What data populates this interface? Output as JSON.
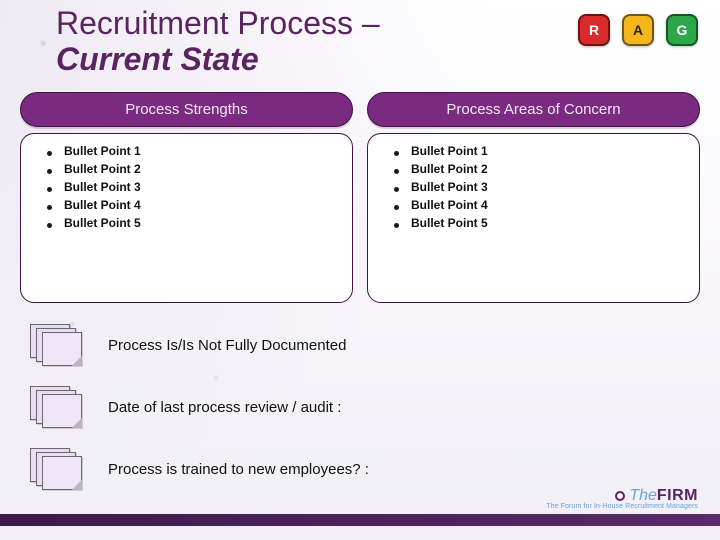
{
  "title": {
    "line1": "Recruitment Process –",
    "line2": "Current State"
  },
  "rag": {
    "r": "R",
    "a": "A",
    "g": "G"
  },
  "columns": {
    "left": {
      "header": "Process Strengths",
      "items": [
        "Bullet Point 1",
        "Bullet Point 2",
        "Bullet Point 3",
        "Bullet Point 4",
        "Bullet Point 5"
      ]
    },
    "right": {
      "header": "Process Areas of Concern",
      "items": [
        "Bullet Point 1",
        "Bullet Point 2",
        "Bullet Point 3",
        "Bullet Point 4",
        "Bullet Point 5"
      ]
    }
  },
  "rows": [
    "Process Is/Is Not Fully Documented",
    "Date of last process review / audit :",
    "Process is trained to new employees? :"
  ],
  "logo": {
    "the": "The",
    "firm": "FIRM",
    "tagline": "The Forum for In-House Recruitment Managers"
  },
  "colors": {
    "accent_purple": "#5b235f",
    "pill_purple": "#7b2a82",
    "pill_border": "#3d1340",
    "rag_r": "#da2a2a",
    "rag_a": "#f3b71b",
    "rag_g": "#2fa64a",
    "footer_grad_from": "#3d1a49",
    "footer_grad_to": "#5a2a6b",
    "doc_fill": "#e9def0",
    "logo_blue": "#6aa2d8"
  }
}
